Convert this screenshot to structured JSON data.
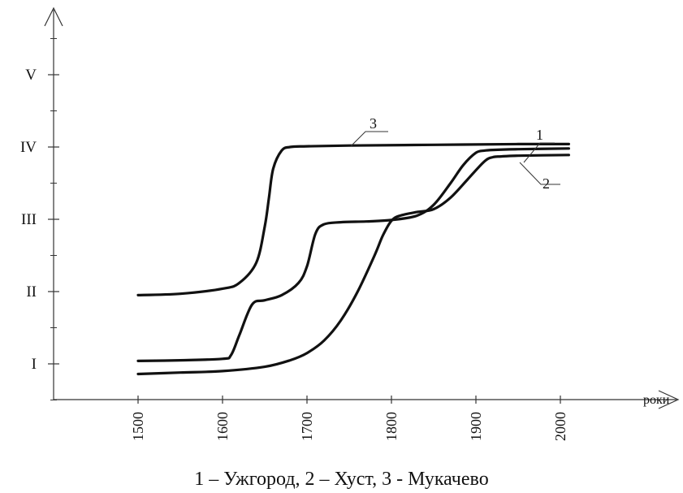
{
  "chart_data": {
    "type": "line",
    "x_axis": {
      "ticks": [
        1500,
        1600,
        1700,
        1800,
        1900,
        2000
      ],
      "tick_labels": [
        "1500",
        "1600",
        "1700",
        "1800",
        "1900",
        "2000"
      ],
      "label": "роки",
      "range": [
        1410,
        2060
      ]
    },
    "y_axis": {
      "levels": [
        1,
        2,
        3,
        4,
        5
      ],
      "tick_labels": [
        "I",
        "II",
        "III",
        "IV",
        "V"
      ],
      "range": [
        0.5,
        5.9
      ]
    },
    "grid": false,
    "legend_caption": "1 – Ужгород, 2 – Хуст, 3 - Мукачево",
    "series": [
      {
        "label": "1",
        "x": [
          1500,
          1550,
          1600,
          1610,
          1620,
          1635,
          1650,
          1670,
          1690,
          1700,
          1710,
          1720,
          1740,
          1770,
          1800,
          1830,
          1850,
          1870,
          1885,
          1900,
          1910,
          1920,
          1950,
          2010
        ],
        "y": [
          1.04,
          1.05,
          1.07,
          1.12,
          1.4,
          1.82,
          1.88,
          1.95,
          2.12,
          2.35,
          2.8,
          2.93,
          2.96,
          2.97,
          2.99,
          3.05,
          3.2,
          3.5,
          3.75,
          3.92,
          3.95,
          3.96,
          3.97,
          3.98
        ]
      },
      {
        "label": "2",
        "x": [
          1500,
          1550,
          1600,
          1650,
          1680,
          1700,
          1720,
          1740,
          1760,
          1780,
          1790,
          1800,
          1810,
          1830,
          1850,
          1870,
          1890,
          1910,
          1920,
          1930,
          1950,
          2010
        ],
        "y": [
          0.86,
          0.88,
          0.9,
          0.96,
          1.05,
          1.15,
          1.32,
          1.6,
          2.0,
          2.5,
          2.78,
          2.98,
          3.05,
          3.1,
          3.14,
          3.3,
          3.55,
          3.8,
          3.86,
          3.87,
          3.88,
          3.89
        ]
      },
      {
        "label": "3",
        "x": [
          1500,
          1550,
          1600,
          1620,
          1640,
          1650,
          1655,
          1660,
          1670,
          1680,
          1700,
          1750,
          1850,
          1950,
          2010
        ],
        "y": [
          1.95,
          1.97,
          2.04,
          2.12,
          2.4,
          2.9,
          3.3,
          3.7,
          3.95,
          4.0,
          4.01,
          4.02,
          4.03,
          4.04,
          4.04
        ]
      }
    ]
  }
}
